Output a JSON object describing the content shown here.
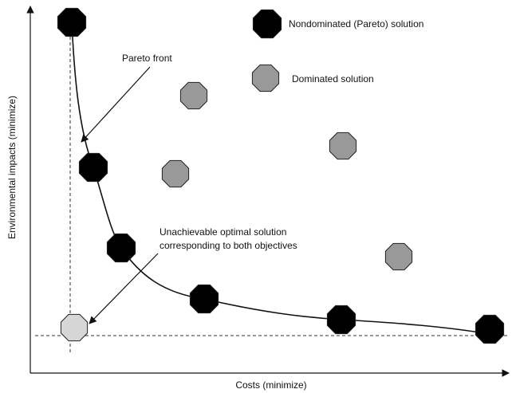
{
  "y_axis_label": "Environmental impacts (minimize)",
  "x_axis_label": "Costs (minimize)",
  "legend": {
    "nondominated": "Nondominated (Pareto) solution",
    "dominated": "Dominated solution"
  },
  "annotations": {
    "pareto_front": "Pareto front",
    "unachievable": [
      "Unachievable optimal solution",
      "corresponding to both objectives"
    ]
  }
}
